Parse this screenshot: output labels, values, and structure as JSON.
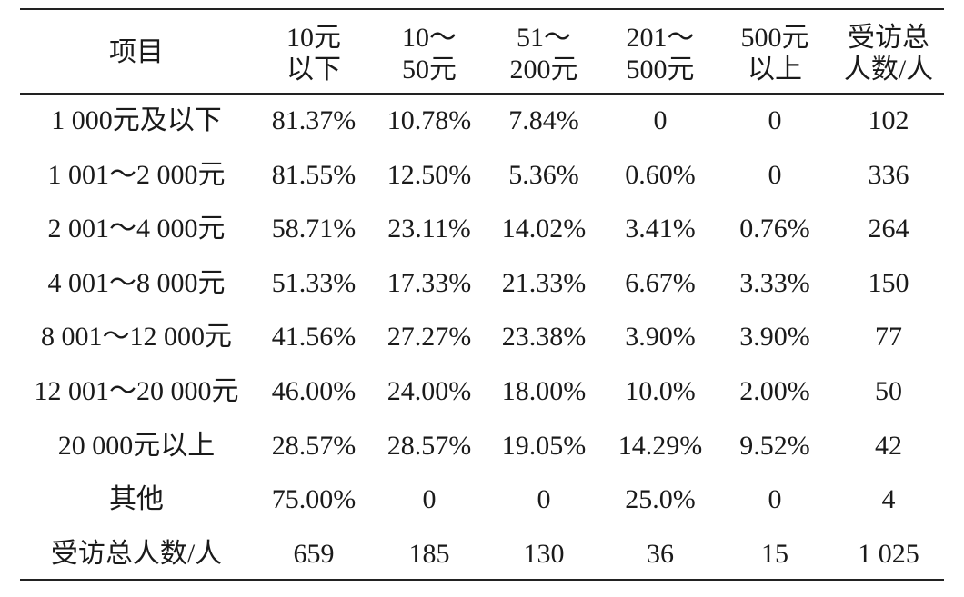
{
  "table": {
    "header": [
      [
        "项目"
      ],
      [
        "10元",
        "以下"
      ],
      [
        "10～",
        "50元"
      ],
      [
        "51～",
        "200元"
      ],
      [
        "201～",
        "500元"
      ],
      [
        "500元",
        "以上"
      ],
      [
        "受访总",
        "人数/人"
      ]
    ],
    "rows": [
      [
        "1 000元及以下",
        "81.37%",
        "10.78%",
        "7.84%",
        "0",
        "0",
        "102"
      ],
      [
        "1 001～2 000元",
        "81.55%",
        "12.50%",
        "5.36%",
        "0.60%",
        "0",
        "336"
      ],
      [
        "2 001～4 000元",
        "58.71%",
        "23.11%",
        "14.02%",
        "3.41%",
        "0.76%",
        "264"
      ],
      [
        "4 001～8 000元",
        "51.33%",
        "17.33%",
        "21.33%",
        "6.67%",
        "3.33%",
        "150"
      ],
      [
        "8 001～12 000元",
        "41.56%",
        "27.27%",
        "23.38%",
        "3.90%",
        "3.90%",
        "77"
      ],
      [
        "12 001～20 000元",
        "46.00%",
        "24.00%",
        "18.00%",
        "10.0%",
        "2.00%",
        "50"
      ],
      [
        "20 000元以上",
        "28.57%",
        "28.57%",
        "19.05%",
        "14.29%",
        "9.52%",
        "42"
      ],
      [
        "其他",
        "75.00%",
        "0",
        "0",
        "25.0%",
        "0",
        "4"
      ],
      [
        "受访总人数/人",
        "659",
        "185",
        "130",
        "36",
        "15",
        "1 025"
      ]
    ]
  }
}
